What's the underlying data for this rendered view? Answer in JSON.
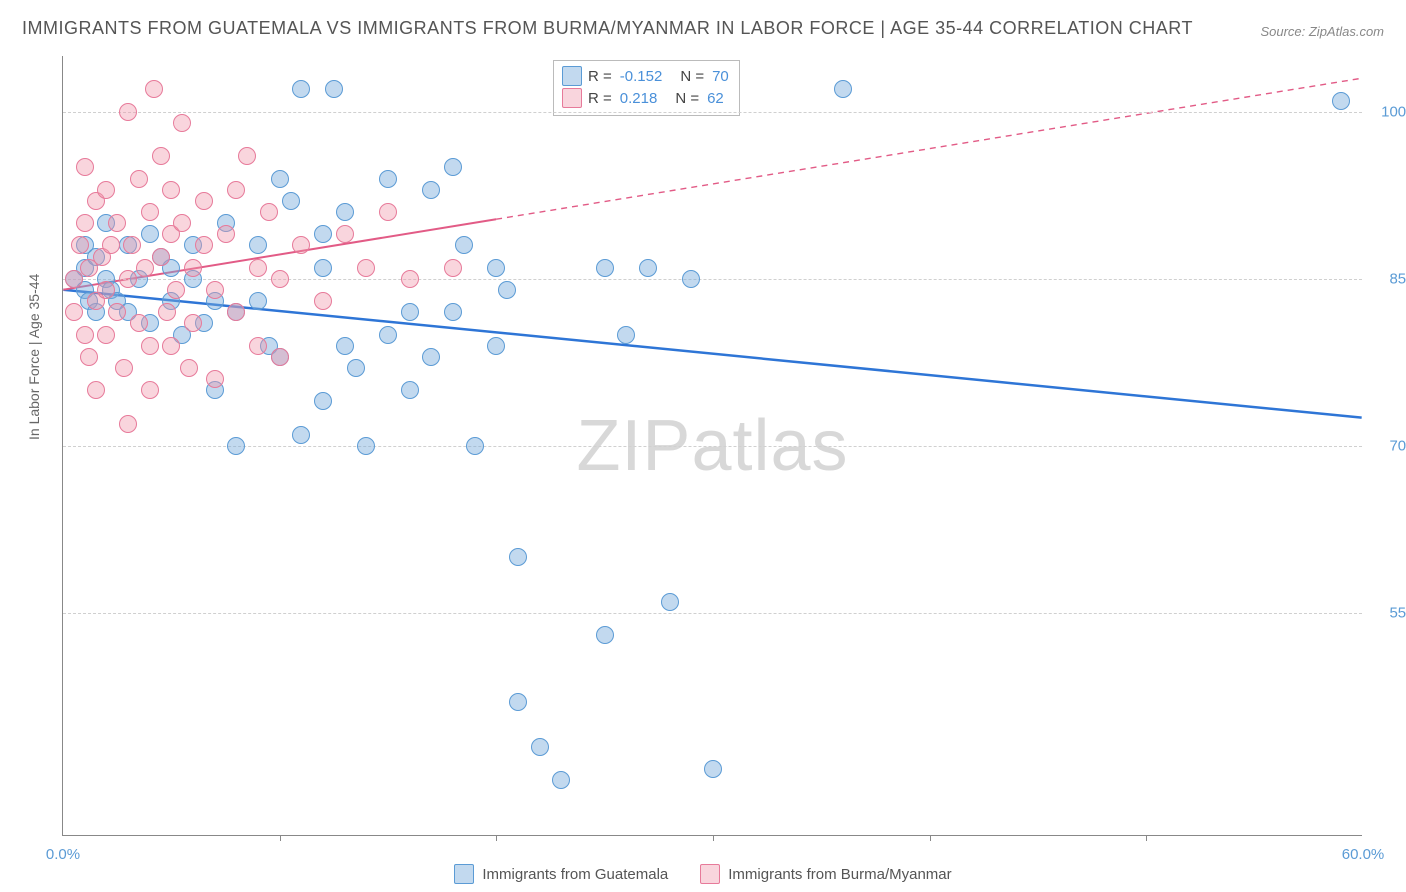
{
  "title": "IMMIGRANTS FROM GUATEMALA VS IMMIGRANTS FROM BURMA/MYANMAR IN LABOR FORCE | AGE 35-44 CORRELATION CHART",
  "source": "Source: ZipAtlas.com",
  "ylabel": "In Labor Force | Age 35-44",
  "watermark_prefix": "ZIP",
  "watermark_suffix": "atlas",
  "chart": {
    "type": "scatter",
    "xlim": [
      0,
      60
    ],
    "ylim": [
      35,
      105
    ],
    "y_ticks": [
      55.0,
      70.0,
      85.0,
      100.0
    ],
    "y_tick_labels": [
      "55.0%",
      "70.0%",
      "85.0%",
      "100.0%"
    ],
    "x_ticks": [
      0,
      10,
      20,
      30,
      40,
      50,
      60
    ],
    "x_min_label": "0.0%",
    "x_max_label": "60.0%",
    "background_color": "#ffffff",
    "grid_color": "#d0d0d0",
    "axis_color": "#888888",
    "tick_label_color": "#5b9bd5",
    "marker_size": 18,
    "series": [
      {
        "name": "Immigrants from Guatemala",
        "color_fill": "rgba(120,170,220,0.45)",
        "color_stroke": "#5b9bd5",
        "R": -0.152,
        "N": 70,
        "trend": {
          "x1": 0,
          "y1": 84.0,
          "x2": 60,
          "y2": 72.5,
          "solid_until_x": 60,
          "color": "#2e75d6",
          "width": 2.5
        },
        "points": [
          [
            0.5,
            85
          ],
          [
            1,
            84
          ],
          [
            1,
            88
          ],
          [
            1,
            86
          ],
          [
            1.2,
            83
          ],
          [
            1.5,
            82
          ],
          [
            1.5,
            87
          ],
          [
            2,
            85
          ],
          [
            2,
            90
          ],
          [
            2.2,
            84
          ],
          [
            2.5,
            83
          ],
          [
            3,
            82
          ],
          [
            3,
            88
          ],
          [
            3.5,
            85
          ],
          [
            4,
            81
          ],
          [
            4,
            89
          ],
          [
            4.5,
            87
          ],
          [
            5,
            83
          ],
          [
            5,
            86
          ],
          [
            5.5,
            80
          ],
          [
            6,
            88
          ],
          [
            6,
            85
          ],
          [
            6.5,
            81
          ],
          [
            7,
            83
          ],
          [
            7,
            75
          ],
          [
            7.5,
            90
          ],
          [
            8,
            82
          ],
          [
            8,
            70
          ],
          [
            9,
            88
          ],
          [
            9,
            83
          ],
          [
            9.5,
            79
          ],
          [
            10,
            94
          ],
          [
            10,
            78
          ],
          [
            10.5,
            92
          ],
          [
            11,
            71
          ],
          [
            11,
            102
          ],
          [
            12,
            86
          ],
          [
            12,
            89
          ],
          [
            12,
            74
          ],
          [
            12.5,
            102
          ],
          [
            13,
            79
          ],
          [
            13,
            91
          ],
          [
            13.5,
            77
          ],
          [
            14,
            70
          ],
          [
            15,
            80
          ],
          [
            15,
            94
          ],
          [
            16,
            82
          ],
          [
            16,
            75
          ],
          [
            17,
            93
          ],
          [
            17,
            78
          ],
          [
            18,
            95
          ],
          [
            18,
            82
          ],
          [
            18.5,
            88
          ],
          [
            19,
            70
          ],
          [
            20,
            86
          ],
          [
            20,
            79
          ],
          [
            20.5,
            84
          ],
          [
            21,
            60
          ],
          [
            21,
            47
          ],
          [
            22,
            43
          ],
          [
            23,
            40
          ],
          [
            25,
            53
          ],
          [
            25,
            86
          ],
          [
            26,
            80
          ],
          [
            27,
            86
          ],
          [
            28,
            56
          ],
          [
            29,
            85
          ],
          [
            30,
            41
          ],
          [
            36,
            102
          ],
          [
            59,
            101
          ]
        ]
      },
      {
        "name": "Immigrants from Burma/Myanmar",
        "color_fill": "rgba(240,150,170,0.40)",
        "color_stroke": "#e77a9a",
        "R": 0.218,
        "N": 62,
        "trend": {
          "x1": 0,
          "y1": 84.0,
          "x2": 60,
          "y2": 103.0,
          "solid_until_x": 20,
          "color": "#e25b86",
          "width": 2
        },
        "points": [
          [
            0.5,
            85
          ],
          [
            0.5,
            82
          ],
          [
            0.8,
            88
          ],
          [
            1,
            80
          ],
          [
            1,
            90
          ],
          [
            1,
            95
          ],
          [
            1.2,
            86
          ],
          [
            1.2,
            78
          ],
          [
            1.5,
            83
          ],
          [
            1.5,
            92
          ],
          [
            1.5,
            75
          ],
          [
            1.8,
            87
          ],
          [
            2,
            84
          ],
          [
            2,
            80
          ],
          [
            2,
            93
          ],
          [
            2.2,
            88
          ],
          [
            2.5,
            82
          ],
          [
            2.5,
            90
          ],
          [
            2.8,
            77
          ],
          [
            3,
            85
          ],
          [
            3,
            72
          ],
          [
            3,
            100
          ],
          [
            3.2,
            88
          ],
          [
            3.5,
            81
          ],
          [
            3.5,
            94
          ],
          [
            3.8,
            86
          ],
          [
            4,
            79
          ],
          [
            4,
            91
          ],
          [
            4,
            75
          ],
          [
            4.2,
            102
          ],
          [
            4.5,
            87
          ],
          [
            4.5,
            96
          ],
          [
            4.8,
            82
          ],
          [
            5,
            89
          ],
          [
            5,
            79
          ],
          [
            5,
            93
          ],
          [
            5.2,
            84
          ],
          [
            5.5,
            90
          ],
          [
            5.5,
            99
          ],
          [
            5.8,
            77
          ],
          [
            6,
            86
          ],
          [
            6,
            81
          ],
          [
            6.5,
            92
          ],
          [
            6.5,
            88
          ],
          [
            7,
            84
          ],
          [
            7,
            76
          ],
          [
            7.5,
            89
          ],
          [
            8,
            93
          ],
          [
            8,
            82
          ],
          [
            8.5,
            96
          ],
          [
            9,
            86
          ],
          [
            9,
            79
          ],
          [
            9.5,
            91
          ],
          [
            10,
            85
          ],
          [
            10,
            78
          ],
          [
            11,
            88
          ],
          [
            12,
            83
          ],
          [
            13,
            89
          ],
          [
            14,
            86
          ],
          [
            15,
            91
          ],
          [
            16,
            85
          ],
          [
            18,
            86
          ]
        ]
      }
    ]
  },
  "legend": {
    "r_label": "R =",
    "n_label": "N =",
    "rows": [
      {
        "swatch": "blue",
        "R": "-0.152",
        "N": "70"
      },
      {
        "swatch": "pink",
        "R": "0.218",
        "N": "62"
      }
    ]
  },
  "bottom_legend": [
    {
      "swatch": "blue",
      "label": "Immigrants from Guatemala"
    },
    {
      "swatch": "pink",
      "label": "Immigrants from Burma/Myanmar"
    }
  ]
}
